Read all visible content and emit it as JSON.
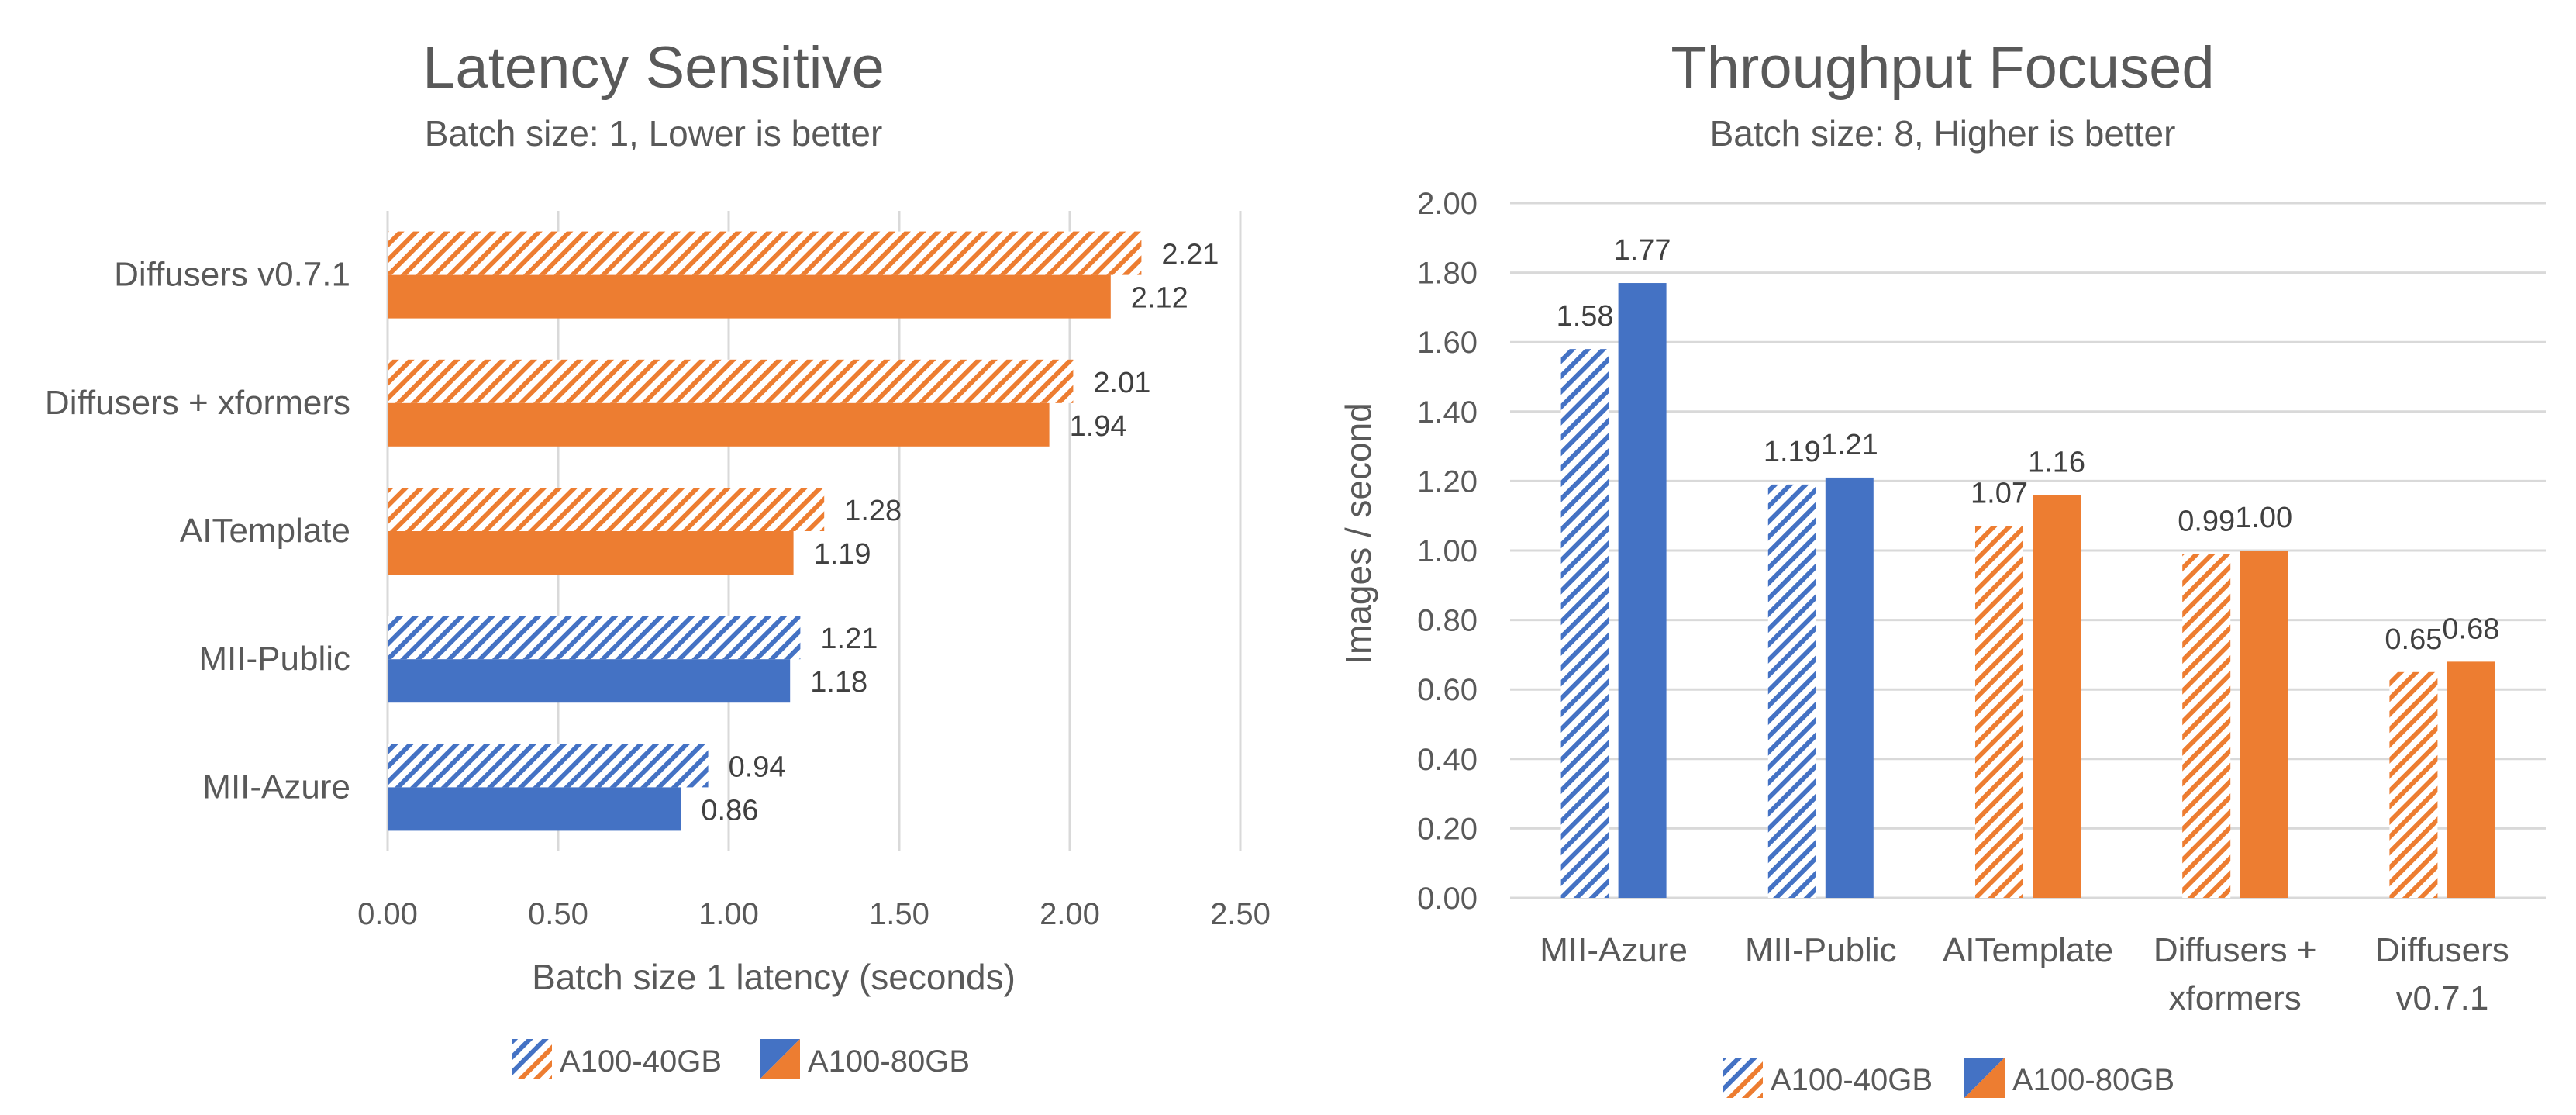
{
  "colors": {
    "orange": "#ED7D31",
    "blue": "#4472C4",
    "grid": "#D9D9D9",
    "text": "#595959",
    "label_text": "#404040"
  },
  "chart_data": [
    {
      "type": "bar",
      "orientation": "horizontal",
      "title": "Latency Sensitive",
      "subtitle": "Batch size: 1, Lower is better",
      "xlabel": "Batch size 1 latency (seconds)",
      "ylabel": "",
      "categories": [
        "Diffusers v0.7.1",
        "Diffusers + xformers",
        "AITemplate",
        "MII-Public",
        "MII-Azure"
      ],
      "series": [
        {
          "name": "A100-40GB",
          "pattern": "hatched",
          "values": [
            2.21,
            2.01,
            1.28,
            1.21,
            0.94
          ],
          "labels": [
            "2.21",
            "2.01",
            "1.28",
            "1.21",
            "0.94"
          ],
          "colors": [
            "#ED7D31",
            "#ED7D31",
            "#ED7D31",
            "#4472C4",
            "#4472C4"
          ]
        },
        {
          "name": "A100-80GB",
          "pattern": "solid",
          "values": [
            2.12,
            1.94,
            1.19,
            1.18,
            0.86
          ],
          "labels": [
            "2.12",
            "1.94",
            "1.19",
            "1.18",
            "0.86"
          ],
          "colors": [
            "#ED7D31",
            "#ED7D31",
            "#ED7D31",
            "#4472C4",
            "#4472C4"
          ]
        }
      ],
      "xlim": [
        0,
        2.5
      ],
      "ticks": [
        0,
        0.5,
        1.0,
        1.5,
        2.0,
        2.5
      ],
      "tick_labels": [
        "0.00",
        "0.50",
        "1.00",
        "1.50",
        "2.00",
        "2.50"
      ],
      "grid": true,
      "legend": "bottom"
    },
    {
      "type": "bar",
      "orientation": "vertical",
      "title": "Throughput Focused",
      "subtitle": "Batch size: 8, Higher is better",
      "xlabel": "",
      "ylabel": "Images / second",
      "categories": [
        [
          "MII-Azure"
        ],
        [
          "MII-Public"
        ],
        [
          "AITemplate"
        ],
        [
          "Diffusers +",
          "xformers"
        ],
        [
          "Diffusers",
          "v0.7.1"
        ]
      ],
      "series": [
        {
          "name": "A100-40GB",
          "pattern": "hatched",
          "values": [
            1.58,
            1.19,
            1.07,
            0.99,
            0.65
          ],
          "labels": [
            "1.58",
            "1.19",
            "1.07",
            "0.99",
            "0.65"
          ],
          "colors": [
            "#4472C4",
            "#4472C4",
            "#ED7D31",
            "#ED7D31",
            "#ED7D31"
          ]
        },
        {
          "name": "A100-80GB",
          "pattern": "solid",
          "values": [
            1.77,
            1.21,
            1.16,
            1.0,
            0.68
          ],
          "labels": [
            "1.77",
            "1.21",
            "1.16",
            "1.00",
            "0.68"
          ],
          "colors": [
            "#4472C4",
            "#4472C4",
            "#ED7D31",
            "#ED7D31",
            "#ED7D31"
          ]
        }
      ],
      "ylim": [
        0,
        2.0
      ],
      "ticks": [
        0,
        0.2,
        0.4,
        0.6,
        0.8,
        1.0,
        1.2,
        1.4,
        1.6,
        1.8,
        2.0
      ],
      "tick_labels": [
        "0.00",
        "0.20",
        "0.40",
        "0.60",
        "0.80",
        "1.00",
        "1.20",
        "1.40",
        "1.60",
        "1.80",
        "2.00"
      ],
      "grid": true,
      "legend": "bottom"
    }
  ]
}
